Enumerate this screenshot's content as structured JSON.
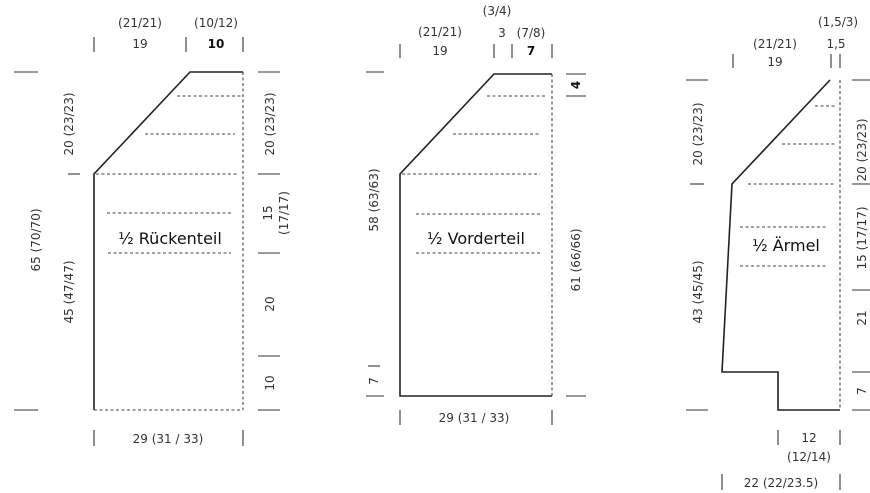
{
  "back": {
    "title": "½ Rückenteil",
    "top_widths": {
      "a_sizes": "(21/21)",
      "a": "19",
      "b_sizes": "(10/12)",
      "b": "10"
    },
    "left": {
      "total": "65 (70/70)",
      "upper": "20 (23/23)",
      "lower": "45 (47/47)"
    },
    "right": {
      "r1": "20 (23/23)",
      "r2a": "15",
      "r2b": "(17/17)",
      "r3": "20",
      "r4": "10"
    },
    "bottom": "29 (31 / 33)"
  },
  "front": {
    "title": "½ Vorderteil",
    "top_widths": {
      "top_sizes": "(3/4)",
      "a_sizes": "(21/21)",
      "a": "19",
      "b": "3",
      "c_sizes": "(7/8)",
      "c": "7"
    },
    "left": {
      "main": "58 (63/63)",
      "small": "7"
    },
    "right": {
      "r1": "4",
      "r2": "61 (66/66)"
    },
    "bottom": "29 (31 / 33)"
  },
  "sleeve": {
    "title": "½ Ärmel",
    "top_widths": {
      "top_sizes": "(1,5/3)",
      "a_sizes": "(21/21)",
      "a": "19",
      "b": "1,5"
    },
    "left": {
      "upper": "20 (23/23)",
      "lower": "43 (45/45)"
    },
    "right": {
      "r1": "20 (23/23)",
      "r2": "15 (17/17)",
      "r3": "21",
      "r4": "7"
    },
    "bottom": {
      "inner": "12",
      "inner_sizes": "(12/14)",
      "outer": "22 (22/23.5)"
    }
  }
}
